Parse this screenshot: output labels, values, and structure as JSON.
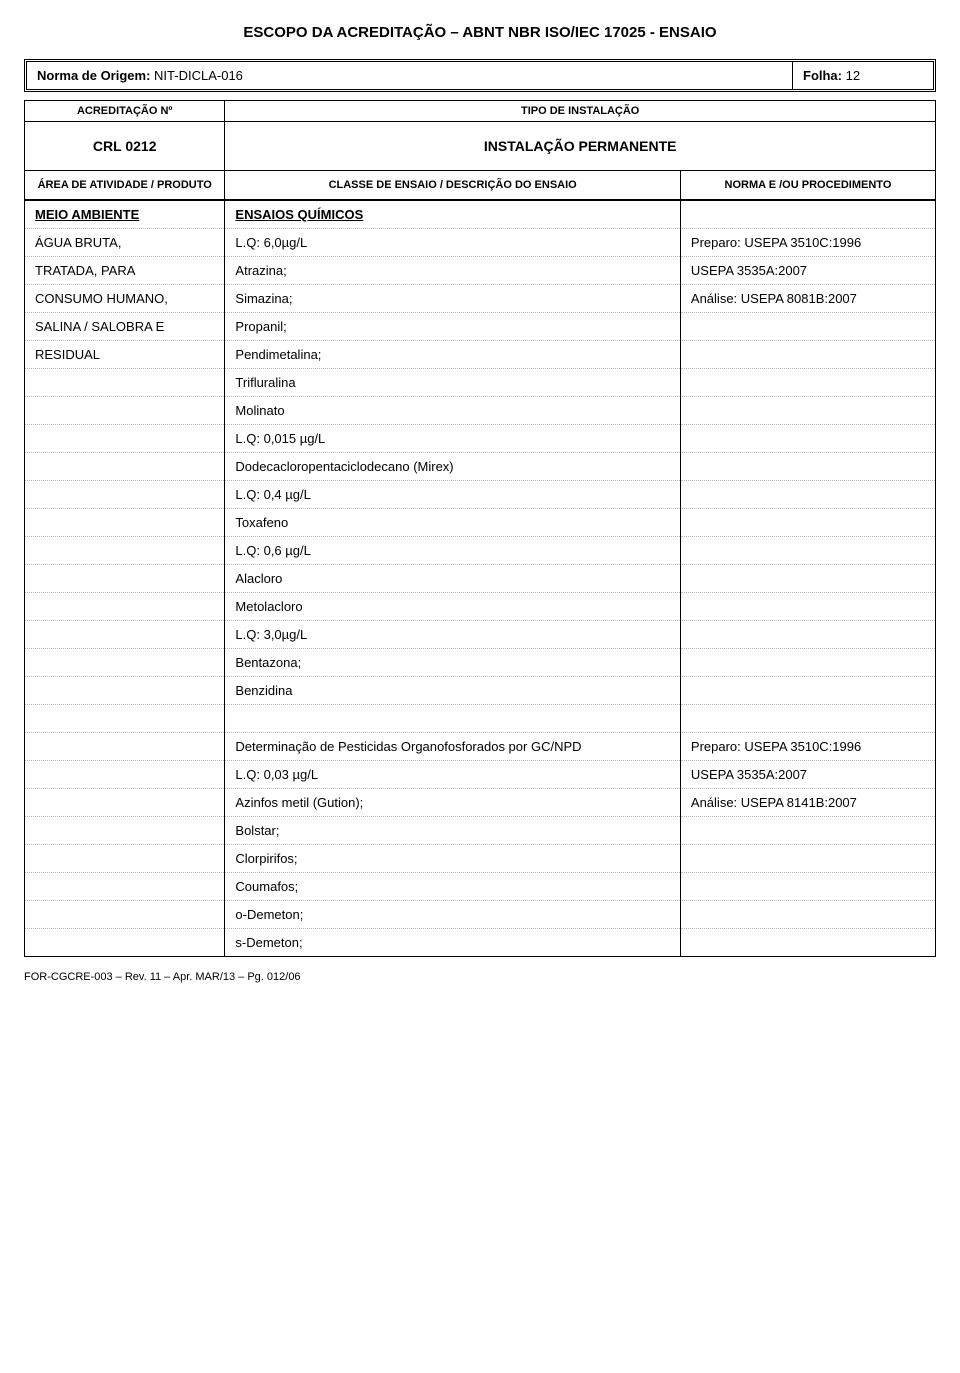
{
  "doc": {
    "title": "ESCOPO DA ACREDITAÇÃO – ABNT NBR ISO/IEC 17025 - ENSAIO",
    "origin_label": "Norma de Origem:",
    "origin_value": "NIT-DICLA-016",
    "folha_label": "Folha:",
    "folha_value": "12",
    "acred_label": "ACREDITAÇÃO Nº",
    "tipo_label": "TIPO DE INSTALAÇÃO",
    "crl": "CRL 0212",
    "instalacao": "INSTALAÇÃO PERMANENTE",
    "area_label": "ÁREA DE ATIVIDADE / PRODUTO",
    "classe_label": "CLASSE DE ENSAIO / DESCRIÇÃO DO ENSAIO",
    "norma_label": "NORMA E /OU PROCEDIMENTO",
    "footer": "FOR-CGCRE-003 – Rev. 11 – Apr. MAR/13 – Pg. 012/06"
  },
  "rows": [
    {
      "c1": "MEIO AMBIENTE",
      "c1_style": "b u",
      "c2": "ENSAIOS QUÍMICOS",
      "c2_style": "b u",
      "c3": ""
    },
    {
      "c1": "ÁGUA BRUTA,",
      "c2": "L.Q: 6,0µg/L",
      "c3": "Preparo: USEPA 3510C:1996"
    },
    {
      "c1": "TRATADA, PARA",
      "c2": "Atrazina;",
      "c3": "USEPA 3535A:2007"
    },
    {
      "c1": "CONSUMO HUMANO,",
      "c2": "Simazina;",
      "c3": "Análise: USEPA 8081B:2007"
    },
    {
      "c1": "SALINA / SALOBRA E",
      "c2": "Propanil;",
      "c3": ""
    },
    {
      "c1": "RESIDUAL",
      "c2": "Pendimetalina;",
      "c3": ""
    },
    {
      "c1": "",
      "c2": "Trifluralina",
      "c3": ""
    },
    {
      "c1": "",
      "c2": "Molinato",
      "c3": ""
    },
    {
      "c1": "",
      "c2": "L.Q: 0,015 µg/L",
      "c3": ""
    },
    {
      "c1": "",
      "c2": "Dodecacloropentaciclodecano (Mirex)",
      "c3": ""
    },
    {
      "c1": "",
      "c2": "L.Q: 0,4 µg/L",
      "c3": ""
    },
    {
      "c1": "",
      "c2": "Toxafeno",
      "c3": ""
    },
    {
      "c1": "",
      "c2": "L.Q: 0,6 µg/L",
      "c3": ""
    },
    {
      "c1": "",
      "c2": "Alacloro",
      "c3": ""
    },
    {
      "c1": "",
      "c2": "Metolacloro",
      "c3": ""
    },
    {
      "c1": "",
      "c2": "L.Q: 3,0µg/L",
      "c3": ""
    },
    {
      "c1": "",
      "c2": "Bentazona;",
      "c3": ""
    },
    {
      "c1": "",
      "c2": "Benzidina",
      "c3": ""
    },
    {
      "c1": "",
      "c2": "",
      "c3": ""
    },
    {
      "c1": "",
      "c2": "Determinação de Pesticidas Organofosforados por GC/NPD",
      "c2_pad": true,
      "c3": "Preparo: USEPA 3510C:1996"
    },
    {
      "c1": "",
      "c2": "L.Q: 0,03 µg/L",
      "c2_pad": true,
      "c3": "USEPA 3535A:2007"
    },
    {
      "c1": "",
      "c2": "Azinfos metil (Gution);",
      "c2_pad": true,
      "c3": "Análise: USEPA 8141B:2007"
    },
    {
      "c1": "",
      "c2": "Bolstar;",
      "c2_pad": true,
      "c3": ""
    },
    {
      "c1": "",
      "c2": "Clorpirifos;",
      "c2_pad": true,
      "c3": ""
    },
    {
      "c1": "",
      "c2": "Coumafos;",
      "c2_pad": true,
      "c3": ""
    },
    {
      "c1": "",
      "c2": "o-Demeton;",
      "c2_pad": true,
      "c3": ""
    },
    {
      "c1": "",
      "c2": "s-Demeton;",
      "c2_pad": true,
      "c3": ""
    }
  ],
  "style": {
    "text_color": "#000000",
    "background": "#ffffff",
    "dotted_color": "#bbbbbb",
    "font_family": "Arial",
    "title_fontsize": 15,
    "body_fontsize": 13,
    "label_fontsize": 11,
    "col_widths": [
      "22%",
      "50%",
      "28%"
    ]
  }
}
